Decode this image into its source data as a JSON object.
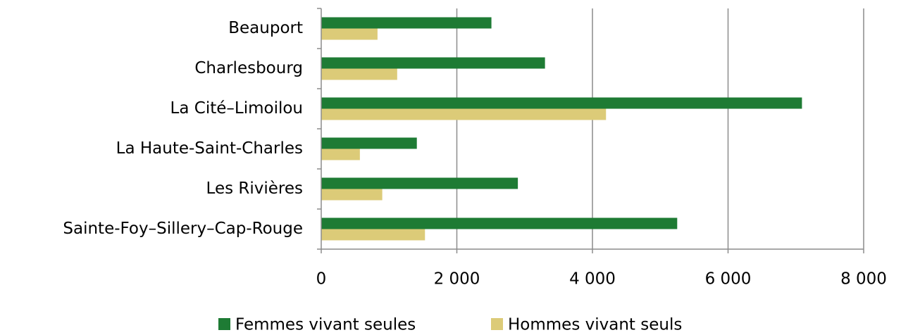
{
  "chart_data": {
    "type": "hbar",
    "categories": [
      "Beauport",
      "Charlesbourg",
      "La Cité–Limoilou",
      "La Haute-Saint-Charles",
      "Les Rivières",
      "Sainte-Foy–Sillery–Cap-Rouge"
    ],
    "series": [
      {
        "name": "Femmes vivant seules",
        "color": "#1e7b34",
        "values": [
          2510,
          3300,
          7090,
          1410,
          2900,
          5250
        ]
      },
      {
        "name": "Hommes vivant seuls",
        "color": "#dccb78",
        "values": [
          830,
          1120,
          4200,
          570,
          900,
          1530
        ]
      }
    ],
    "xlim": [
      0,
      8000
    ],
    "xticks": [
      0,
      {
        "value": 2000,
        "label": "2 000"
      },
      {
        "value": 4000,
        "label": "4 000"
      },
      {
        "value": 6000,
        "label": "6 000"
      },
      {
        "value": 8000,
        "label": "8 000"
      }
    ],
    "grid": true,
    "legend": "bottom"
  }
}
